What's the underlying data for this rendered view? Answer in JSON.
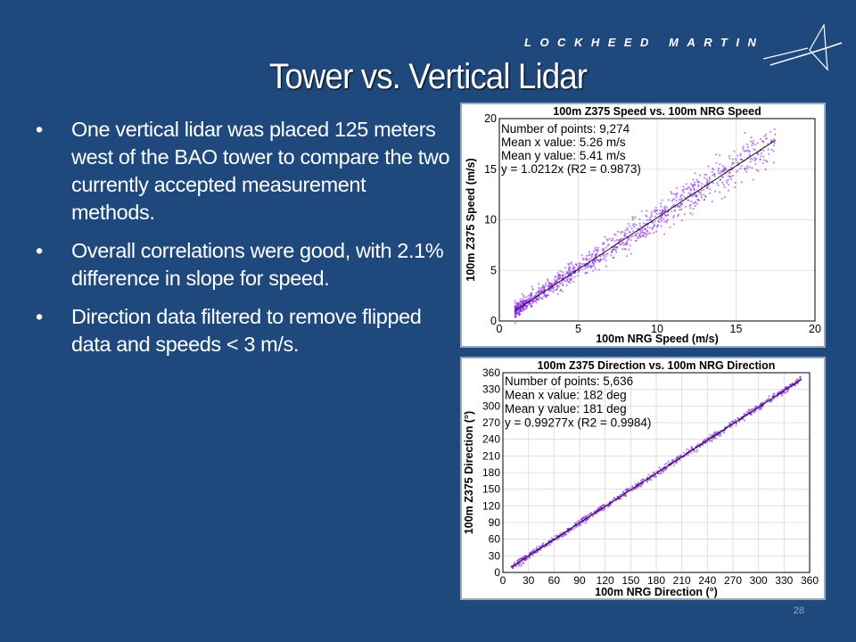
{
  "slide": {
    "logo_text": "LOCKHEED MARTIN",
    "title": "Tower vs. Vertical Lidar",
    "bullets": [
      "One vertical lidar was placed 125 meters west of the BAO tower to compare the two currently accepted measurement methods.",
      "Overall correlations were good, with 2.1% difference in slope for speed.",
      "Direction data filtered to remove flipped data and speeds < 3 m/s."
    ],
    "page_number": "28",
    "colors": {
      "background": "#1f497d",
      "points": "#8a2be2",
      "fit_line": "#000000"
    }
  },
  "chart_data": [
    {
      "type": "scatter",
      "title": "100m Z375 Speed vs. 100m NRG Speed",
      "xlabel": "100m NRG Speed (m/s)",
      "ylabel": "100m Z375 Speed (m/s)",
      "xlim": [
        0,
        20
      ],
      "ylim": [
        0,
        20
      ],
      "xticks": [
        0,
        5,
        10,
        15,
        20
      ],
      "yticks": [
        0,
        5,
        10,
        15,
        20
      ],
      "annotations": [
        "Number of points: 9,274",
        "Mean x value: 5.26 m/s",
        "Mean y value: 5.41 m/s",
        "y = 1.0212x (R2 = 0.9873)"
      ],
      "fit": {
        "slope": 1.0212,
        "r2": 0.9873,
        "x_range": [
          1,
          17.5
        ]
      },
      "point_cloud": {
        "count": 9274,
        "x_range": [
          1,
          17.5
        ],
        "mean_x": 5.26,
        "mean_y": 5.41
      },
      "grid": true
    },
    {
      "type": "scatter",
      "title": "100m Z375 Direction vs. 100m NRG Direction",
      "xlabel": "100m NRG Direction (°)",
      "ylabel": "100m Z375 Direction (°)",
      "xlim": [
        0,
        360
      ],
      "ylim": [
        0,
        360
      ],
      "xticks": [
        0,
        30,
        60,
        90,
        120,
        150,
        180,
        210,
        240,
        270,
        300,
        330,
        360
      ],
      "yticks": [
        0,
        30,
        60,
        90,
        120,
        150,
        180,
        210,
        240,
        270,
        300,
        330,
        360
      ],
      "annotations": [
        "Number of points: 5,636",
        "Mean x value: 182 deg",
        "Mean y value: 181 deg",
        "y = 0.99277x (R2 = 0.9984)"
      ],
      "fit": {
        "slope": 0.99277,
        "r2": 0.9984,
        "x_range": [
          10,
          350
        ]
      },
      "point_cloud": {
        "count": 5636,
        "x_range": [
          10,
          350
        ],
        "mean_x": 182,
        "mean_y": 181
      },
      "grid": true
    }
  ]
}
